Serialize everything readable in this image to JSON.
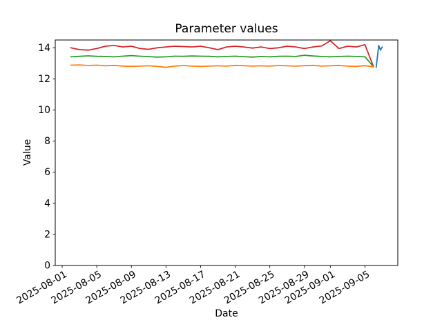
{
  "figure": {
    "title": "Parameter values",
    "xlabel": "Date",
    "ylabel": "Value"
  },
  "chart_data": {
    "type": "line",
    "title": "Parameter values",
    "xlabel": "Date",
    "ylabel": "Value",
    "background_color": "#ffffff",
    "spine_color": "#000000",
    "grid": false,
    "legend": "none",
    "axes": {
      "x_units": "days offset from 2025-08-01",
      "xlim_days": [
        -0.8,
        38.8
      ],
      "ylim": [
        0,
        14.5
      ],
      "y_ticks": [
        0,
        2,
        4,
        6,
        8,
        10,
        12,
        14
      ],
      "x_tick_rotation_deg": 30,
      "x_ticks": [
        {
          "label": "2025-08-01",
          "day": 0
        },
        {
          "label": "2025-08-05",
          "day": 4
        },
        {
          "label": "2025-08-09",
          "day": 8
        },
        {
          "label": "2025-08-13",
          "day": 12
        },
        {
          "label": "2025-08-17",
          "day": 16
        },
        {
          "label": "2025-08-21",
          "day": 20
        },
        {
          "label": "2025-08-25",
          "day": 24
        },
        {
          "label": "2025-08-29",
          "day": 28
        },
        {
          "label": "2025-09-01",
          "day": 31
        },
        {
          "label": "2025-09-05",
          "day": 35
        }
      ]
    },
    "series": [
      {
        "name": "red",
        "color": "#d62728",
        "date_range": "2025-08-02 to 2025-09-06 (daily)",
        "x_days": [
          1,
          2,
          3,
          4,
          5,
          6,
          7,
          8,
          9,
          10,
          11,
          12,
          13,
          14,
          15,
          16,
          17,
          18,
          19,
          20,
          21,
          22,
          23,
          24,
          25,
          26,
          27,
          28,
          29,
          30,
          31,
          32,
          33,
          34,
          35,
          36
        ],
        "values": [
          14.0,
          13.88,
          13.85,
          13.95,
          14.1,
          14.15,
          14.05,
          14.1,
          13.95,
          13.9,
          14.0,
          14.05,
          14.1,
          14.08,
          14.05,
          14.1,
          14.0,
          13.88,
          14.05,
          14.1,
          14.05,
          13.98,
          14.05,
          13.95,
          14.0,
          14.1,
          14.05,
          13.95,
          14.05,
          14.12,
          14.45,
          13.95,
          14.1,
          14.05,
          14.2,
          12.78
        ]
      },
      {
        "name": "green",
        "color": "#2ca02c",
        "date_range": "2025-08-02 to 2025-09-06 (daily)",
        "x_days": [
          1,
          2,
          3,
          4,
          5,
          6,
          7,
          8,
          9,
          10,
          11,
          12,
          13,
          14,
          15,
          16,
          17,
          18,
          19,
          20,
          21,
          22,
          23,
          24,
          25,
          26,
          27,
          28,
          29,
          30,
          31,
          32,
          33,
          34,
          35,
          36
        ],
        "values": [
          13.42,
          13.45,
          13.48,
          13.45,
          13.44,
          13.42,
          13.46,
          13.5,
          13.46,
          13.43,
          13.4,
          13.42,
          13.46,
          13.45,
          13.47,
          13.46,
          13.45,
          13.42,
          13.44,
          13.46,
          13.43,
          13.4,
          13.44,
          13.42,
          13.45,
          13.46,
          13.44,
          13.52,
          13.47,
          13.44,
          13.42,
          13.44,
          13.46,
          13.44,
          13.42,
          12.78
        ]
      },
      {
        "name": "orange",
        "color": "#ff7f0e",
        "date_range": "2025-08-02 to 2025-09-06 (daily)",
        "x_days": [
          1,
          2,
          3,
          4,
          5,
          6,
          7,
          8,
          9,
          10,
          11,
          12,
          13,
          14,
          15,
          16,
          17,
          18,
          19,
          20,
          21,
          22,
          23,
          24,
          25,
          26,
          27,
          28,
          29,
          30,
          31,
          32,
          33,
          34,
          35,
          36
        ],
        "values": [
          12.88,
          12.9,
          12.86,
          12.88,
          12.84,
          12.87,
          12.82,
          12.8,
          12.82,
          12.84,
          12.8,
          12.74,
          12.82,
          12.86,
          12.82,
          12.8,
          12.82,
          12.84,
          12.82,
          12.87,
          12.85,
          12.82,
          12.84,
          12.82,
          12.86,
          12.84,
          12.82,
          12.85,
          12.87,
          12.82,
          12.84,
          12.87,
          12.82,
          12.8,
          12.85,
          12.78
        ]
      },
      {
        "name": "blue",
        "color": "#1f77b4",
        "date_range": "2025-09-06 to 2025-09-07 (sub-daily spike at end)",
        "x_days": [
          36.3,
          36.6,
          36.8,
          37.0
        ],
        "values": [
          12.75,
          14.15,
          13.85,
          14.05
        ]
      }
    ]
  }
}
